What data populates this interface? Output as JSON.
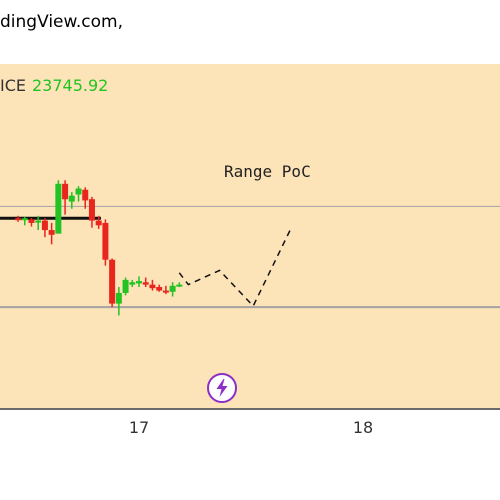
{
  "header": {
    "text": "dingView.com,"
  },
  "chart_data": {
    "type": "candlestick",
    "price_label": "ICE",
    "price_value": "23745.92",
    "x_ticks": [
      {
        "label": "17",
        "x": 17
      },
      {
        "label": "18",
        "x": 18
      }
    ],
    "ylim": [
      23000,
      25900
    ],
    "reference_lines": [
      {
        "value": 24700,
        "style": "grid"
      },
      {
        "value": 23850,
        "style": "grid"
      }
    ],
    "range_poc": {
      "label": "Range PoC",
      "value": 24600,
      "x_start": 16.47,
      "x_end": 16.83
    },
    "candles": [
      {
        "x": 16.46,
        "open": 24600,
        "high": 24620,
        "low": 24570,
        "close": 24590
      },
      {
        "x": 16.49,
        "open": 24590,
        "high": 24610,
        "low": 24540,
        "close": 24600
      },
      {
        "x": 16.52,
        "open": 24590,
        "high": 24600,
        "low": 24530,
        "close": 24560
      },
      {
        "x": 16.55,
        "open": 24570,
        "high": 24620,
        "low": 24500,
        "close": 24580
      },
      {
        "x": 16.58,
        "open": 24580,
        "high": 24600,
        "low": 24440,
        "close": 24500
      },
      {
        "x": 16.61,
        "open": 24500,
        "high": 24560,
        "low": 24380,
        "close": 24460
      },
      {
        "x": 16.64,
        "open": 24470,
        "high": 24920,
        "low": 24470,
        "close": 24890
      },
      {
        "x": 16.67,
        "open": 24890,
        "high": 24920,
        "low": 24630,
        "close": 24760
      },
      {
        "x": 16.7,
        "open": 24740,
        "high": 24820,
        "low": 24680,
        "close": 24790
      },
      {
        "x": 16.73,
        "open": 24800,
        "high": 24870,
        "low": 24740,
        "close": 24850
      },
      {
        "x": 16.76,
        "open": 24840,
        "high": 24860,
        "low": 24680,
        "close": 24750
      },
      {
        "x": 16.79,
        "open": 24760,
        "high": 24780,
        "low": 24520,
        "close": 24580
      },
      {
        "x": 16.82,
        "open": 24580,
        "high": 24620,
        "low": 24510,
        "close": 24540
      },
      {
        "x": 16.85,
        "open": 24560,
        "high": 24590,
        "low": 24200,
        "close": 24250
      },
      {
        "x": 16.88,
        "open": 24250,
        "high": 24260,
        "low": 23850,
        "close": 23880
      },
      {
        "x": 16.91,
        "open": 23880,
        "high": 24020,
        "low": 23780,
        "close": 23970
      },
      {
        "x": 16.94,
        "open": 23970,
        "high": 24100,
        "low": 23950,
        "close": 24080
      },
      {
        "x": 16.97,
        "open": 24040,
        "high": 24080,
        "low": 24020,
        "close": 24060
      },
      {
        "x": 17.0,
        "open": 24050,
        "high": 24110,
        "low": 24020,
        "close": 24070
      },
      {
        "x": 17.03,
        "open": 24060,
        "high": 24100,
        "low": 24020,
        "close": 24040
      },
      {
        "x": 17.06,
        "open": 24040,
        "high": 24080,
        "low": 23990,
        "close": 24010
      },
      {
        "x": 17.09,
        "open": 24020,
        "high": 24040,
        "low": 23980,
        "close": 23990
      },
      {
        "x": 17.12,
        "open": 23990,
        "high": 24030,
        "low": 23960,
        "close": 23980
      },
      {
        "x": 17.15,
        "open": 23980,
        "high": 24060,
        "low": 23940,
        "close": 24030
      },
      {
        "x": 17.18,
        "open": 24030,
        "high": 24060,
        "low": 24020,
        "close": 24040
      }
    ],
    "projection": [
      {
        "x": 17.18,
        "y": 24140
      },
      {
        "x": 17.22,
        "y": 24040
      },
      {
        "x": 17.36,
        "y": 24160
      },
      {
        "x": 17.51,
        "y": 23860
      },
      {
        "x": 17.68,
        "y": 24520
      }
    ],
    "colors": {
      "background": "#fde3b8",
      "up": "#22c322",
      "down": "#e8261e",
      "grid": "#a3a3a3",
      "poc": "#111111",
      "projection": "#111111",
      "price_value": "#22c322",
      "badge": "#8c2fc7"
    },
    "badge_icon": "lightning-bolt-icon"
  }
}
